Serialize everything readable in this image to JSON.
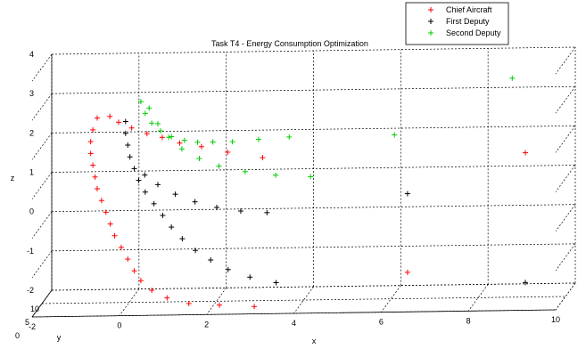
{
  "chart_data": {
    "type": "scatter",
    "title": "Task T4 - Energy Consumption Optimization",
    "xlabel": "x",
    "ylabel": "y",
    "zlabel": "z",
    "xlim": [
      -2,
      10
    ],
    "zlim": [
      -2,
      4
    ],
    "x_ticks": [
      "-2",
      "0",
      "2",
      "4",
      "6",
      "8",
      "10"
    ],
    "y_ticks": [
      "10",
      "5",
      "0"
    ],
    "z_ticks": [
      "-2",
      "-1",
      "0",
      "1",
      "2",
      "3",
      "4"
    ],
    "grid": true,
    "legend_position": "top-right",
    "marker": "+",
    "series": [
      {
        "name": "Chief Aircraft",
        "color": "#ff0000",
        "near": [
          [
            -0.8,
            2.6
          ],
          [
            -0.9,
            2.3
          ],
          [
            -0.95,
            2.0
          ],
          [
            -0.95,
            1.7
          ],
          [
            -0.9,
            1.4
          ],
          [
            -0.85,
            1.1
          ],
          [
            -0.8,
            0.8
          ],
          [
            -0.7,
            0.5
          ],
          [
            -0.6,
            0.2
          ],
          [
            -0.5,
            -0.1
          ],
          [
            -0.4,
            -0.4
          ],
          [
            -0.25,
            -0.7
          ],
          [
            -0.1,
            -1.0
          ],
          [
            0.05,
            -1.3
          ],
          [
            0.2,
            -1.55
          ],
          [
            0.45,
            -1.8
          ],
          [
            0.8,
            -2.0
          ],
          [
            1.3,
            -2.15
          ],
          [
            2.0,
            -2.2
          ],
          [
            2.8,
            -2.25
          ]
        ],
        "far": [
          [
            -0.6,
            2.5
          ],
          [
            -0.4,
            2.35
          ],
          [
            -0.1,
            2.2
          ],
          [
            0.25,
            2.05
          ],
          [
            0.6,
            1.95
          ],
          [
            1.0,
            1.8
          ],
          [
            1.5,
            1.7
          ],
          [
            2.1,
            1.55
          ],
          [
            2.9,
            1.4
          ]
        ],
        "outliers": [
          [
            6.2,
            -1.6
          ],
          [
            8.9,
            1.4
          ]
        ]
      },
      {
        "name": "First Deputy",
        "color": "#000000",
        "near": [
          [
            -0.15,
            2.5
          ],
          [
            -0.15,
            2.2
          ],
          [
            -0.1,
            1.9
          ],
          [
            -0.05,
            1.6
          ],
          [
            0.05,
            1.3
          ],
          [
            0.15,
            1.0
          ],
          [
            0.3,
            0.7
          ],
          [
            0.5,
            0.4
          ],
          [
            0.7,
            0.1
          ],
          [
            0.9,
            -0.2
          ],
          [
            1.15,
            -0.5
          ],
          [
            1.45,
            -0.8
          ],
          [
            1.8,
            -1.05
          ],
          [
            2.2,
            -1.3
          ],
          [
            2.7,
            -1.5
          ],
          [
            3.3,
            -1.65
          ]
        ],
        "far": [
          [
            0.2,
            1.0
          ],
          [
            0.5,
            0.75
          ],
          [
            0.9,
            0.5
          ],
          [
            1.35,
            0.3
          ],
          [
            1.85,
            0.15
          ],
          [
            2.4,
            0.05
          ],
          [
            3.0,
            0.0
          ]
        ],
        "outliers": [
          [
            6.2,
            0.4
          ],
          [
            8.9,
            -1.9
          ]
        ]
      },
      {
        "name": "Second Deputy",
        "color": "#00cc00",
        "near": [
          [
            0.2,
            3.0
          ],
          [
            0.3,
            2.7
          ],
          [
            0.45,
            2.45
          ],
          [
            0.65,
            2.25
          ],
          [
            0.9,
            2.1
          ],
          [
            1.2,
            2.0
          ],
          [
            1.5,
            1.95
          ],
          [
            1.85,
            1.95
          ],
          [
            2.3,
            1.95
          ],
          [
            2.9,
            2.0
          ],
          [
            3.6,
            2.05
          ]
        ],
        "far": [
          [
            0.3,
            2.7
          ],
          [
            0.5,
            2.3
          ],
          [
            0.75,
            1.95
          ],
          [
            1.05,
            1.65
          ],
          [
            1.45,
            1.4
          ],
          [
            1.9,
            1.2
          ],
          [
            2.5,
            1.05
          ],
          [
            3.2,
            0.95
          ],
          [
            4.0,
            0.9
          ]
        ],
        "outliers": [
          [
            5.9,
            1.9
          ],
          [
            8.6,
            3.3
          ]
        ]
      }
    ]
  }
}
